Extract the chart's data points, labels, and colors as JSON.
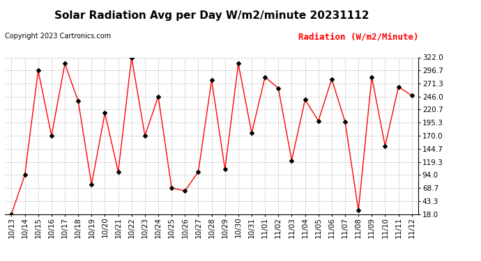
{
  "title": "Solar Radiation Avg per Day W/m2/minute 20231112",
  "copyright": "Copyright 2023 Cartronics.com",
  "legend_label": "Radiation (W/m2/Minute)",
  "dates": [
    "10/13",
    "10/14",
    "10/15",
    "10/16",
    "10/17",
    "10/18",
    "10/19",
    "10/20",
    "10/21",
    "10/22",
    "10/23",
    "10/24",
    "10/25",
    "10/26",
    "10/27",
    "10/28",
    "10/29",
    "10/30",
    "10/31",
    "11/01",
    "11/02",
    "11/03",
    "11/04",
    "11/05",
    "11/06",
    "11/07",
    "11/08",
    "11/09",
    "11/10",
    "11/11",
    "11/12"
  ],
  "values": [
    18.0,
    94.0,
    296.7,
    170.0,
    310.0,
    237.0,
    75.0,
    214.0,
    100.0,
    322.0,
    170.0,
    246.0,
    68.7,
    63.0,
    100.0,
    278.0,
    105.0,
    310.0,
    175.0,
    284.0,
    262.0,
    122.0,
    240.0,
    199.0,
    280.0,
    197.0,
    25.0,
    284.0,
    150.0,
    265.0,
    248.0
  ],
  "yticks": [
    18.0,
    43.3,
    68.7,
    94.0,
    119.3,
    144.7,
    170.0,
    195.3,
    220.7,
    246.0,
    271.3,
    296.7,
    322.0
  ],
  "ymin": 18.0,
  "ymax": 322.0,
  "line_color": "red",
  "marker_color": "black",
  "grid_color": "#bbbbbb",
  "bg_color": "white",
  "title_fontsize": 11,
  "copyright_fontsize": 7,
  "legend_fontsize": 9,
  "tick_fontsize": 7.5
}
